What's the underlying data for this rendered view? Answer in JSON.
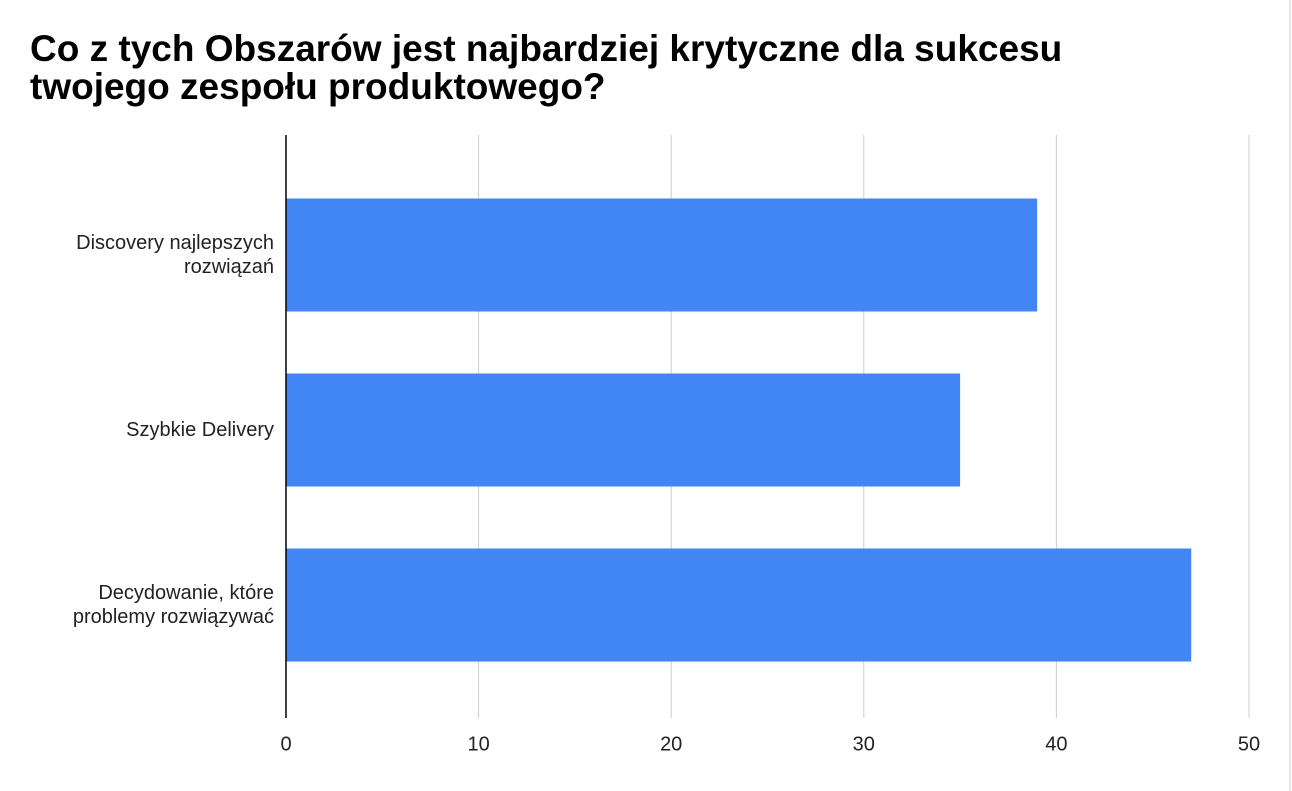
{
  "chart_data": {
    "type": "bar",
    "orientation": "horizontal",
    "title": "Co z tych Obszarów jest najbardziej krytyczne dla sukcesu twojego zespołu produktowego?",
    "categories": [
      "Discovery najlepszych rozwiązań",
      "Szybkie Delivery",
      "Decydowanie, które problemy rozwiązywać"
    ],
    "values": [
      39,
      35,
      47
    ],
    "color": "#4285f4",
    "xlim": [
      0,
      50
    ],
    "xticks": [
      0,
      10,
      20,
      30,
      40,
      50
    ],
    "grid": true
  }
}
